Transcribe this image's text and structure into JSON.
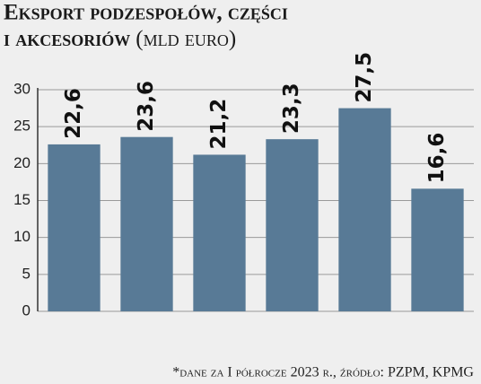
{
  "chart_data": {
    "type": "bar",
    "title": [
      "Eksport podzespołów, części",
      "i akcesoriów"
    ],
    "unit": "(mld euro)",
    "categories": [
      null,
      null,
      null,
      null,
      null,
      null
    ],
    "values": [
      22.6,
      23.6,
      21.2,
      23.3,
      27.5,
      16.6
    ],
    "value_labels": [
      "22,6",
      "23,6",
      "21,2",
      "23,3",
      "27,5",
      "16,6"
    ],
    "color": "#587a96",
    "ylim": [
      0,
      30
    ],
    "yticks": [
      0,
      5,
      10,
      15,
      20,
      25,
      30
    ],
    "grid": true,
    "note": "*dane za I półrocze 2023 r., źródło: PZPM, KPMG"
  }
}
